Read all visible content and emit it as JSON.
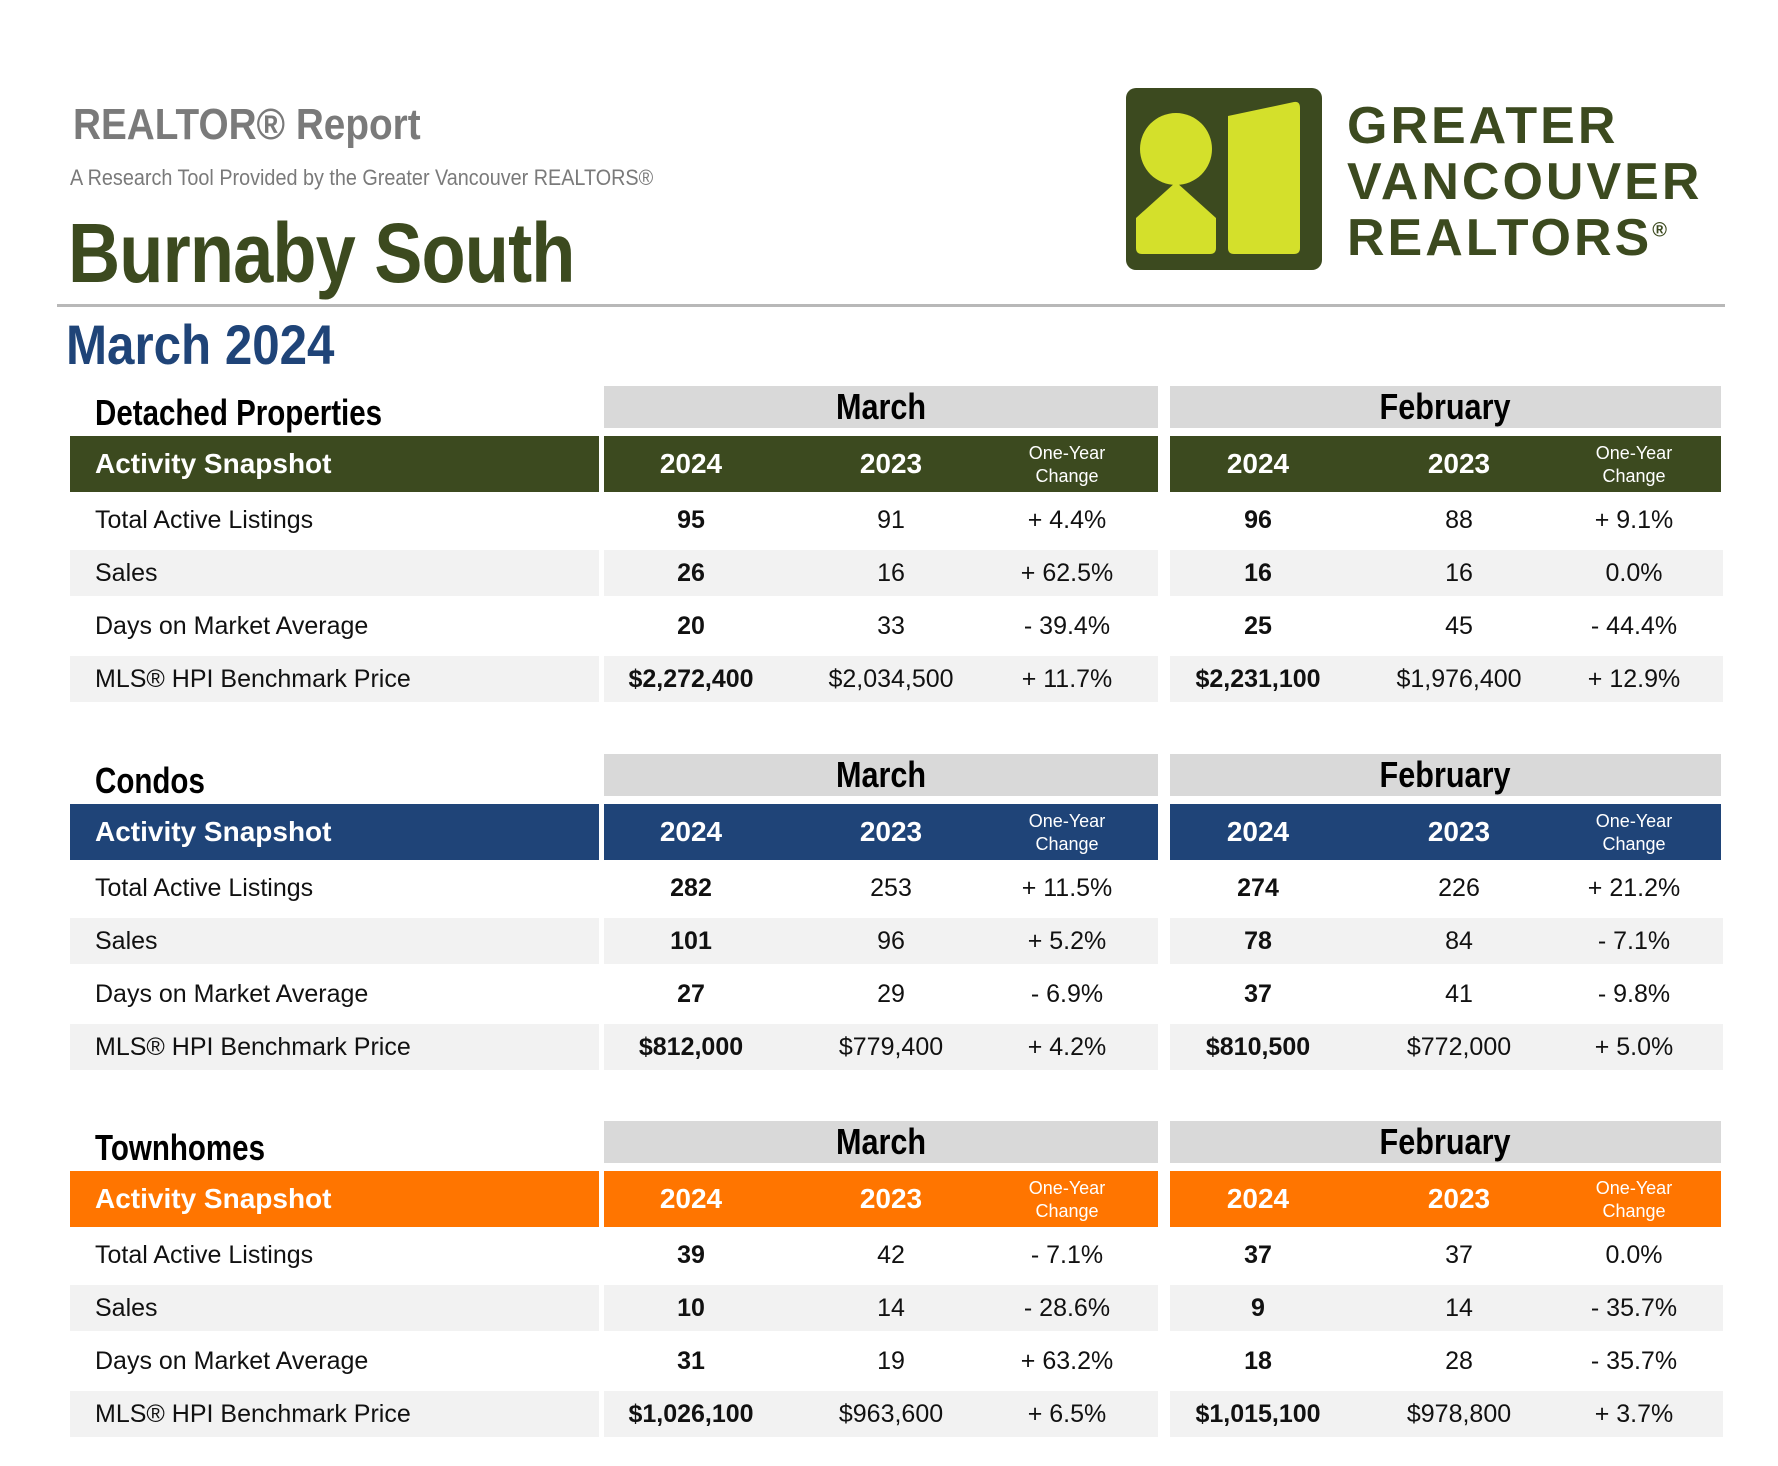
{
  "header": {
    "report_title": "REALTOR® Report",
    "subtitle": "A Research Tool Provided by the Greater Vancouver REALTORS®",
    "area": "Burnaby South",
    "period": "March 2024"
  },
  "logo": {
    "lines": [
      "GREATER",
      "VANCOUVER",
      "REALTORS"
    ],
    "mark": "®",
    "colors": {
      "dark": "#3c4a1f",
      "light": "#d4e02b"
    }
  },
  "column_labels": {
    "snapshot": "Activity Snapshot",
    "month_current": "March",
    "month_previous": "February",
    "year_current": "2024",
    "year_previous": "2023",
    "change_line1": "One-Year",
    "change_line2": "Change"
  },
  "row_labels": [
    "Total Active Listings",
    "Sales",
    "Days on Market Average",
    "MLS® HPI Benchmark Price"
  ],
  "sections": [
    {
      "title": "Detached Properties",
      "color": "#3c4a1f",
      "rows": [
        {
          "march": [
            "95",
            "91",
            "+ 4.4%"
          ],
          "february": [
            "96",
            "88",
            "+ 9.1%"
          ]
        },
        {
          "march": [
            "26",
            "16",
            "+ 62.5%"
          ],
          "february": [
            "16",
            "16",
            "0.0%"
          ]
        },
        {
          "march": [
            "20",
            "33",
            "- 39.4%"
          ],
          "february": [
            "25",
            "45",
            "- 44.4%"
          ]
        },
        {
          "march": [
            "$2,272,400",
            "$2,034,500",
            "+ 11.7%"
          ],
          "february": [
            "$2,231,100",
            "$1,976,400",
            "+ 12.9%"
          ]
        }
      ]
    },
    {
      "title": "Condos",
      "color": "#1f4478",
      "rows": [
        {
          "march": [
            "282",
            "253",
            "+ 11.5%"
          ],
          "february": [
            "274",
            "226",
            "+ 21.2%"
          ]
        },
        {
          "march": [
            "101",
            "96",
            "+ 5.2%"
          ],
          "february": [
            "78",
            "84",
            "- 7.1%"
          ]
        },
        {
          "march": [
            "27",
            "29",
            "- 6.9%"
          ],
          "february": [
            "37",
            "41",
            "- 9.8%"
          ]
        },
        {
          "march": [
            "$812,000",
            "$779,400",
            "+ 4.2%"
          ],
          "february": [
            "$810,500",
            "$772,000",
            "+ 5.0%"
          ]
        }
      ]
    },
    {
      "title": "Townhomes",
      "color": "#ff7500",
      "rows": [
        {
          "march": [
            "39",
            "42",
            "- 7.1%"
          ],
          "february": [
            "37",
            "37",
            "0.0%"
          ]
        },
        {
          "march": [
            "10",
            "14",
            "- 28.6%"
          ],
          "february": [
            "9",
            "14",
            "- 35.7%"
          ]
        },
        {
          "march": [
            "31",
            "19",
            "+ 63.2%"
          ],
          "february": [
            "18",
            "28",
            "- 35.7%"
          ]
        },
        {
          "march": [
            "$1,026,100",
            "$963,600",
            "+ 6.5%"
          ],
          "february": [
            "$1,015,100",
            "$978,800",
            "+ 3.7%"
          ]
        }
      ]
    }
  ]
}
